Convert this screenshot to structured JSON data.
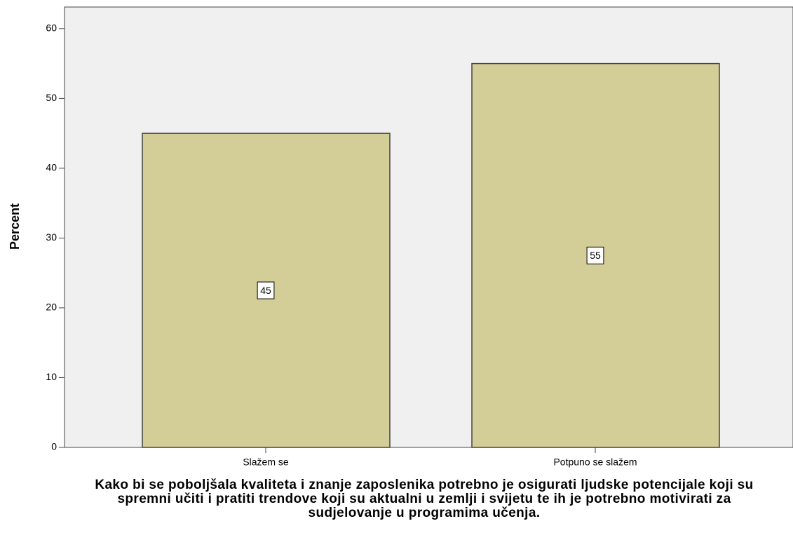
{
  "chart_data": {
    "type": "bar",
    "categories": [
      "Slažem se",
      "Potpuno se slažem"
    ],
    "values": [
      45,
      55
    ],
    "color": "#d3ce97",
    "ylim": [
      0,
      63.1
    ],
    "yticks": [
      0,
      10,
      20,
      30,
      40,
      50,
      60
    ],
    "ylabel": "Percent",
    "xlabel": "Kako bi se poboljšala kvaliteta i znanje zaposlenika potrebno je osigurati ljudske potencijale koji su spremni učiti i pratiti trendove koji su aktualni u zemlji i svijetu te ih je potrebno motivirati za sudjelovanje u programima učenja."
  }
}
